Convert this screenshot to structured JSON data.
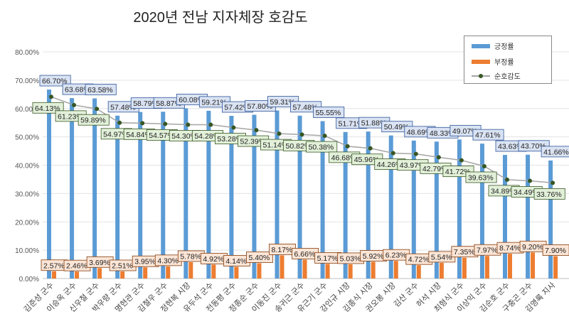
{
  "chart_data": {
    "type": "bar",
    "title": "2020년 전남 지자체장 호감도",
    "categories": [
      "김준성 군수",
      "이승옥 군수",
      "신우철 군수",
      "박우량 군수",
      "명현관 군수",
      "김철우 군수",
      "정현복 시장",
      "유두석 군수",
      "전동평 군수",
      "정종순 군수",
      "이동진 군수",
      "송귀근 군수",
      "유근기 군수",
      "강인규 시장",
      "김종식 시장",
      "권오봉 시장",
      "김산 군수",
      "허석 시장",
      "최형식 군수",
      "이상익 군수",
      "김순호 군수",
      "구충곤 군수",
      "김영록 지사"
    ],
    "series": [
      {
        "name": "긍정률",
        "type": "bar",
        "color": "#5b9bd5",
        "values": [
          66.7,
          63.68,
          63.58,
          57.48,
          58.79,
          58.87,
          60.08,
          59.21,
          57.42,
          57.8,
          59.31,
          57.48,
          55.55,
          51.71,
          51.88,
          50.49,
          48.69,
          48.33,
          49.07,
          47.61,
          43.63,
          43.7,
          41.66
        ]
      },
      {
        "name": "부정률",
        "type": "bar",
        "color": "#ed7d31",
        "values": [
          2.57,
          2.46,
          3.69,
          2.51,
          3.95,
          4.3,
          5.78,
          4.92,
          4.14,
          5.4,
          8.17,
          6.66,
          5.17,
          5.03,
          5.92,
          6.23,
          4.72,
          5.54,
          7.35,
          7.97,
          8.74,
          9.2,
          7.9
        ]
      },
      {
        "name": "순호감도",
        "type": "line",
        "color": "#a5a5a5",
        "marker_color": "#375623",
        "values": [
          64.13,
          61.23,
          59.89,
          54.97,
          54.84,
          54.57,
          54.3,
          54.28,
          53.28,
          52.39,
          51.14,
          50.82,
          50.38,
          46.68,
          45.96,
          44.26,
          43.97,
          42.79,
          41.72,
          39.63,
          34.89,
          34.49,
          33.76
        ]
      }
    ],
    "yticks": [
      "0.00%",
      "10.00%",
      "20.00%",
      "30.00%",
      "40.00%",
      "50.00%",
      "60.00%",
      "70.00%",
      "80.00%"
    ],
    "ylim": [
      0,
      80
    ],
    "grid": true,
    "legend_position": "top-right",
    "label_colors": {
      "positive_bg": "#dae3f3",
      "positive_border": "#2f5597",
      "negative_bg": "#fbe5d6",
      "negative_border": "#843c0c",
      "net_bg": "#e2f0d9",
      "net_border": "#385723"
    }
  }
}
